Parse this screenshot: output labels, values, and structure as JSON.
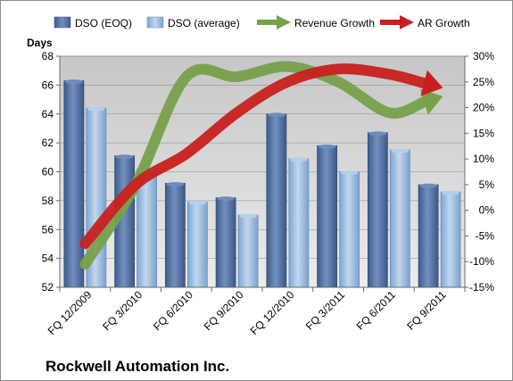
{
  "chart_data": {
    "type": "bar",
    "company": "Rockwell Automation Inc.",
    "y_axis_title": "Days",
    "categories": [
      "FQ 12/2009",
      "FQ 3/2010",
      "FQ 6/2010",
      "FQ 9/2010",
      "FQ 12/2010",
      "FQ 3/2011",
      "FQ 6/2011",
      "FQ 9/2011"
    ],
    "ylim": [
      52,
      68
    ],
    "y_ticks": [
      52,
      54,
      56,
      58,
      60,
      62,
      64,
      66,
      68
    ],
    "y2lim": [
      -15,
      30
    ],
    "y2_ticks": [
      "-15%",
      "-10%",
      "-5%",
      "0%",
      "5%",
      "10%",
      "15%",
      "20%",
      "25%",
      "30%"
    ],
    "bar_series": [
      {
        "name": "DSO (EOQ)",
        "color": "#4f6fa0",
        "values": [
          66.3,
          61.1,
          59.2,
          58.2,
          64.0,
          61.8,
          62.7,
          59.1
        ]
      },
      {
        "name": "DSO (average)",
        "color": "#8fb4dc",
        "values": [
          64.4,
          60.2,
          57.9,
          57.0,
          60.9,
          60.0,
          61.5,
          58.6
        ]
      }
    ],
    "line_series": [
      {
        "name": "Revenue Growth",
        "axis": "secondary",
        "color": "#77a04a",
        "values": [
          -10.5,
          5.0,
          26.0,
          26.0,
          28.0,
          25.0,
          19.0,
          22.0
        ]
      },
      {
        "name": "AR Growth",
        "axis": "secondary",
        "color": "#c8201e",
        "values": [
          -6.5,
          5.0,
          11.0,
          19.0,
          25.0,
          27.5,
          26.5,
          24.0
        ]
      }
    ],
    "legend_position": "top",
    "grid": true
  }
}
